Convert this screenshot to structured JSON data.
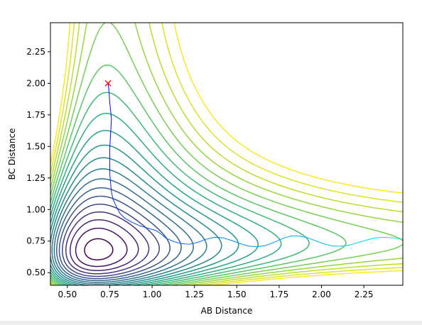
{
  "chart_data": {
    "type": "contour",
    "title": "",
    "xlabel": "AB Distance",
    "ylabel": "BC Distance",
    "xlim": [
      0.4,
      2.48
    ],
    "ylim": [
      0.4,
      2.48
    ],
    "xticks": [
      "0.50",
      "0.75",
      "1.00",
      "1.25",
      "1.50",
      "1.75",
      "2.00",
      "2.25"
    ],
    "yticks": [
      "0.50",
      "0.75",
      "1.00",
      "1.25",
      "1.50",
      "1.75",
      "2.00",
      "2.25"
    ],
    "xtick_values": [
      0.5,
      0.75,
      1.0,
      1.25,
      1.5,
      1.75,
      2.0,
      2.25
    ],
    "ytick_values": [
      0.5,
      0.75,
      1.0,
      1.25,
      1.5,
      1.75,
      2.0,
      2.25
    ],
    "colormap": "viridis",
    "contour_levels": 20,
    "start_marker": {
      "x": 0.74,
      "y": 2.0,
      "symbol": "x",
      "color": "#ff0000"
    },
    "trajectory": {
      "color_start": "#0000ff",
      "color_end": "#00e5ee",
      "x": [
        0.74,
        0.745,
        0.75,
        0.76,
        0.755,
        0.75,
        0.75,
        0.75,
        0.755,
        0.76,
        0.77,
        0.79,
        0.81,
        0.84,
        0.88,
        0.93,
        0.98,
        1.02,
        1.05,
        1.08,
        1.12,
        1.17,
        1.22,
        1.27,
        1.32,
        1.37,
        1.42,
        1.47,
        1.52,
        1.57,
        1.62,
        1.67,
        1.72,
        1.77,
        1.82,
        1.87,
        1.92,
        1.97,
        2.02,
        2.07,
        2.12,
        2.17,
        2.22,
        2.27,
        2.32,
        2.37,
        2.42,
        2.48
      ],
      "y": [
        2.0,
        1.95,
        1.85,
        1.72,
        1.6,
        1.48,
        1.38,
        1.29,
        1.21,
        1.14,
        1.08,
        1.02,
        0.97,
        0.93,
        0.9,
        0.87,
        0.85,
        0.835,
        0.81,
        0.775,
        0.75,
        0.73,
        0.725,
        0.74,
        0.765,
        0.78,
        0.775,
        0.755,
        0.73,
        0.71,
        0.705,
        0.715,
        0.74,
        0.77,
        0.79,
        0.79,
        0.775,
        0.75,
        0.725,
        0.71,
        0.71,
        0.72,
        0.74,
        0.76,
        0.775,
        0.78,
        0.775,
        0.765
      ]
    }
  }
}
